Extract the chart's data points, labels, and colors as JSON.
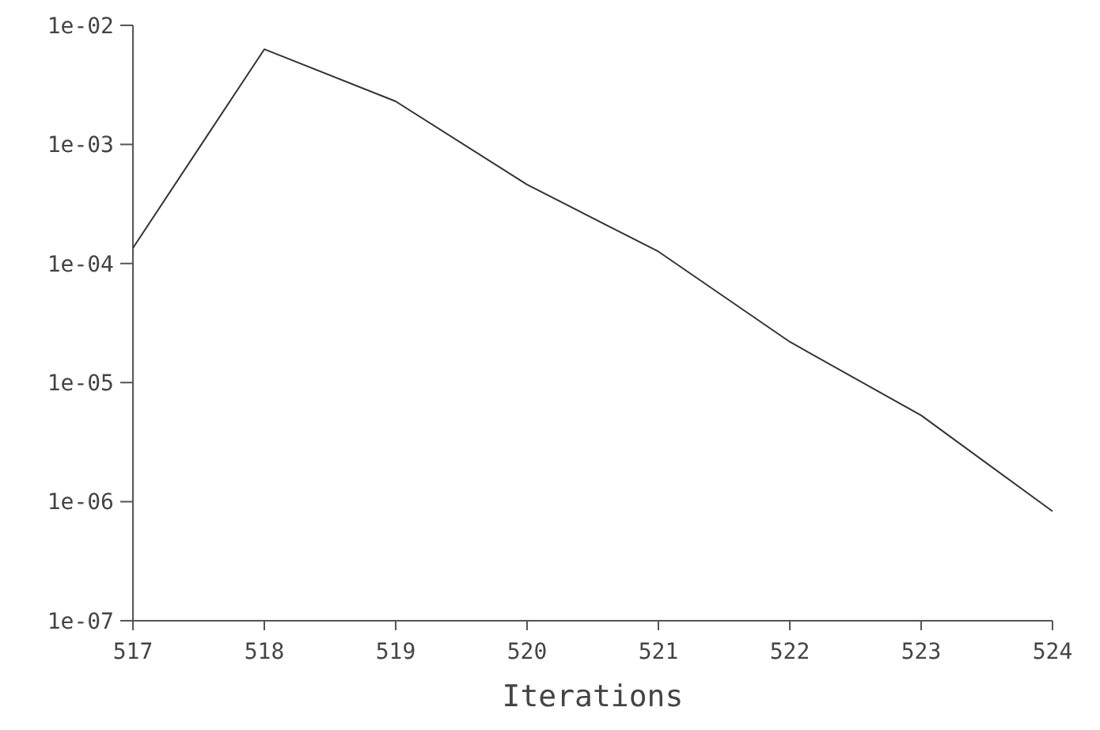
{
  "chart_data": {
    "type": "line",
    "xlabel": "Iterations",
    "log": "y",
    "x": [
      517,
      518,
      519,
      520,
      521,
      522,
      523,
      524
    ],
    "series": [
      {
        "color": "#333333",
        "values": [
          0.000135,
          0.0063,
          0.0023,
          0.00046,
          0.000126,
          2.2e-05,
          5.3e-06,
          8.3e-07
        ]
      }
    ],
    "xlim": [
      517,
      524
    ],
    "xticks": [
      517,
      518,
      519,
      520,
      521,
      522,
      523,
      524
    ],
    "ylim": [
      1e-07,
      0.01
    ],
    "yticks": [
      {
        "value": 1e-07,
        "label": "1e-07"
      },
      {
        "value": 1e-06,
        "label": "1e-06"
      },
      {
        "value": 1e-05,
        "label": "1e-05"
      },
      {
        "value": 0.0001,
        "label": "1e-04"
      },
      {
        "value": 0.001,
        "label": "1e-03"
      },
      {
        "value": 0.01,
        "label": "1e-02"
      }
    ],
    "marker": "none",
    "line_style": "solid"
  }
}
